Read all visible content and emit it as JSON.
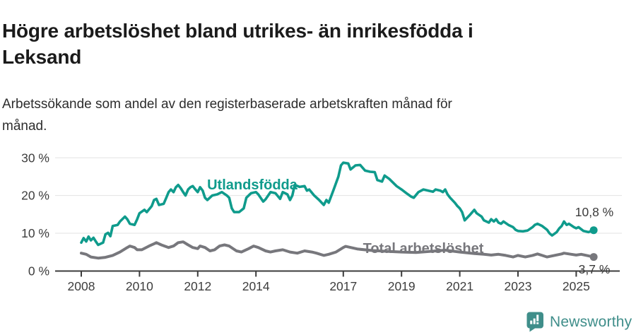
{
  "header": {
    "title": "Högre arbetslöshet bland utrikes- än inrikesfödda i\nLeksand",
    "subtitle": "Arbetssökande som andel av den registerbaserade arbetskraften månad för\nmånad."
  },
  "footer": {
    "brand": "Newsworthy"
  },
  "colors": {
    "accent_teal": "#0f9b8c",
    "series_gray": "#77777c",
    "axis_text": "#3d3d3d",
    "axis_line": "#3c3c3c",
    "gridline": "#e3e3e3",
    "logo_teal": "#3f8e8a"
  },
  "chart_data": {
    "type": "line",
    "title": "Högre arbetslöshet bland utrikes- än inrikesfödda i Leksand",
    "subtitle": "Arbetssökande som andel av den registerbaserade arbetskraften månad för månad.",
    "unit": "%",
    "grid": true,
    "x_axis": {
      "tick_labels": [
        "2008",
        "2010",
        "2012",
        "2014",
        "2017",
        "2019",
        "2021",
        "2023",
        "2025"
      ],
      "tick_years": [
        2008,
        2010,
        2012,
        2014,
        2017,
        2019,
        2021,
        2023,
        2025
      ]
    },
    "y_axis": {
      "ticks": [
        {
          "label": "30 %",
          "value": 30,
          "grid": true
        },
        {
          "label": "20 %",
          "value": 20,
          "grid": true
        },
        {
          "label": "10 %",
          "value": 10,
          "grid": true
        },
        {
          "label": "0 %",
          "value": 0,
          "grid": false
        }
      ],
      "range": [
        0,
        30
      ]
    },
    "series": [
      {
        "name": "Utlandsfödda",
        "color": "#0f9b8c",
        "end_label": "10,8 %",
        "end_value": 10.8,
        "points": [
          [
            2008.0,
            7.5
          ],
          [
            2008.08,
            8.7
          ],
          [
            2008.17,
            7.8
          ],
          [
            2008.25,
            9.1
          ],
          [
            2008.33,
            8.1
          ],
          [
            2008.42,
            8.8
          ],
          [
            2008.5,
            7.8
          ],
          [
            2008.58,
            6.9
          ],
          [
            2008.75,
            7.5
          ],
          [
            2008.83,
            9.7
          ],
          [
            2008.92,
            10.1
          ],
          [
            2009.0,
            9.2
          ],
          [
            2009.08,
            11.9
          ],
          [
            2009.25,
            12.2
          ],
          [
            2009.33,
            13.1
          ],
          [
            2009.5,
            14.4
          ],
          [
            2009.58,
            13.7
          ],
          [
            2009.67,
            12.5
          ],
          [
            2009.83,
            12.2
          ],
          [
            2009.92,
            13.7
          ],
          [
            2010.0,
            15.3
          ],
          [
            2010.17,
            16.2
          ],
          [
            2010.25,
            15.6
          ],
          [
            2010.42,
            17.2
          ],
          [
            2010.5,
            18.8
          ],
          [
            2010.58,
            19.1
          ],
          [
            2010.67,
            17.5
          ],
          [
            2010.83,
            17.8
          ],
          [
            2010.92,
            19.4
          ],
          [
            2011.0,
            20.9
          ],
          [
            2011.08,
            21.6
          ],
          [
            2011.17,
            20.9
          ],
          [
            2011.25,
            22.2
          ],
          [
            2011.33,
            22.8
          ],
          [
            2011.42,
            21.9
          ],
          [
            2011.5,
            20.9
          ],
          [
            2011.58,
            20.0
          ],
          [
            2011.67,
            21.6
          ],
          [
            2011.75,
            22.2
          ],
          [
            2011.83,
            22.5
          ],
          [
            2011.92,
            21.6
          ],
          [
            2012.0,
            20.9
          ],
          [
            2012.08,
            22.2
          ],
          [
            2012.17,
            21.3
          ],
          [
            2012.25,
            19.4
          ],
          [
            2012.33,
            18.8
          ],
          [
            2012.5,
            20.0
          ],
          [
            2012.67,
            20.3
          ],
          [
            2012.83,
            20.9
          ],
          [
            2013.0,
            20.0
          ],
          [
            2013.08,
            19.4
          ],
          [
            2013.17,
            16.6
          ],
          [
            2013.25,
            15.6
          ],
          [
            2013.42,
            15.6
          ],
          [
            2013.58,
            16.6
          ],
          [
            2013.67,
            19.4
          ],
          [
            2013.75,
            20.0
          ],
          [
            2013.83,
            20.6
          ],
          [
            2014.0,
            20.9
          ],
          [
            2014.08,
            20.3
          ],
          [
            2014.25,
            18.4
          ],
          [
            2014.33,
            19.0
          ],
          [
            2014.5,
            20.9
          ],
          [
            2014.67,
            20.6
          ],
          [
            2014.83,
            19.1
          ],
          [
            2014.92,
            20.9
          ],
          [
            2015.08,
            20.3
          ],
          [
            2015.17,
            18.8
          ],
          [
            2015.25,
            20.0
          ],
          [
            2015.33,
            22.8
          ],
          [
            2015.5,
            22.3
          ],
          [
            2015.67,
            22.5
          ],
          [
            2015.75,
            21.3
          ],
          [
            2015.83,
            21.6
          ],
          [
            2016.0,
            20.0
          ],
          [
            2016.17,
            18.8
          ],
          [
            2016.33,
            17.5
          ],
          [
            2016.42,
            18.8
          ],
          [
            2016.5,
            18.1
          ],
          [
            2016.67,
            21.6
          ],
          [
            2016.83,
            25.0
          ],
          [
            2016.92,
            28.0
          ],
          [
            2017.0,
            28.7
          ],
          [
            2017.17,
            28.5
          ],
          [
            2017.25,
            26.9
          ],
          [
            2017.42,
            28.0
          ],
          [
            2017.58,
            28.1
          ],
          [
            2017.75,
            26.6
          ],
          [
            2017.92,
            26.3
          ],
          [
            2018.08,
            26.2
          ],
          [
            2018.17,
            24.1
          ],
          [
            2018.33,
            23.7
          ],
          [
            2018.42,
            25.3
          ],
          [
            2018.58,
            24.4
          ],
          [
            2018.83,
            22.5
          ],
          [
            2019.0,
            21.6
          ],
          [
            2019.17,
            20.6
          ],
          [
            2019.33,
            19.7
          ],
          [
            2019.42,
            19.4
          ],
          [
            2019.58,
            20.9
          ],
          [
            2019.75,
            21.6
          ],
          [
            2019.92,
            21.3
          ],
          [
            2020.08,
            21.0
          ],
          [
            2020.17,
            21.6
          ],
          [
            2020.33,
            21.3
          ],
          [
            2020.42,
            20.9
          ],
          [
            2020.5,
            21.6
          ],
          [
            2020.58,
            20.3
          ],
          [
            2020.67,
            19.4
          ],
          [
            2020.83,
            18.1
          ],
          [
            2020.92,
            17.2
          ],
          [
            2021.0,
            16.6
          ],
          [
            2021.08,
            15.6
          ],
          [
            2021.17,
            13.4
          ],
          [
            2021.33,
            14.7
          ],
          [
            2021.5,
            16.2
          ],
          [
            2021.58,
            15.3
          ],
          [
            2021.75,
            14.4
          ],
          [
            2021.83,
            13.4
          ],
          [
            2022.0,
            12.8
          ],
          [
            2022.08,
            13.7
          ],
          [
            2022.17,
            13.1
          ],
          [
            2022.25,
            13.7
          ],
          [
            2022.33,
            12.8
          ],
          [
            2022.42,
            12.5
          ],
          [
            2022.5,
            13.1
          ],
          [
            2022.67,
            12.2
          ],
          [
            2022.83,
            11.6
          ],
          [
            2022.92,
            10.9
          ],
          [
            2023.0,
            10.6
          ],
          [
            2023.17,
            10.5
          ],
          [
            2023.33,
            10.7
          ],
          [
            2023.5,
            11.6
          ],
          [
            2023.58,
            12.2
          ],
          [
            2023.67,
            12.5
          ],
          [
            2023.83,
            11.9
          ],
          [
            2024.0,
            10.9
          ],
          [
            2024.08,
            10.0
          ],
          [
            2024.17,
            9.4
          ],
          [
            2024.33,
            10.3
          ],
          [
            2024.42,
            11.3
          ],
          [
            2024.5,
            11.9
          ],
          [
            2024.58,
            13.1
          ],
          [
            2024.67,
            12.2
          ],
          [
            2024.75,
            12.5
          ],
          [
            2024.92,
            11.6
          ],
          [
            2025.0,
            11.3
          ],
          [
            2025.08,
            11.6
          ],
          [
            2025.25,
            10.6
          ],
          [
            2025.42,
            10.3
          ],
          [
            2025.6,
            10.8
          ]
        ]
      },
      {
        "name": "Total arbetslöshet",
        "color": "#77777c",
        "end_label": "3,7 %",
        "end_value": 3.7,
        "points": [
          [
            2008.0,
            4.7
          ],
          [
            2008.17,
            4.4
          ],
          [
            2008.33,
            3.7
          ],
          [
            2008.58,
            3.4
          ],
          [
            2008.83,
            3.6
          ],
          [
            2009.08,
            4.1
          ],
          [
            2009.33,
            5.0
          ],
          [
            2009.58,
            6.2
          ],
          [
            2009.67,
            6.6
          ],
          [
            2009.83,
            6.2
          ],
          [
            2009.92,
            5.6
          ],
          [
            2010.08,
            5.6
          ],
          [
            2010.33,
            6.6
          ],
          [
            2010.5,
            7.2
          ],
          [
            2010.58,
            7.5
          ],
          [
            2010.75,
            6.9
          ],
          [
            2011.0,
            6.2
          ],
          [
            2011.17,
            6.6
          ],
          [
            2011.33,
            7.5
          ],
          [
            2011.5,
            7.7
          ],
          [
            2011.67,
            6.9
          ],
          [
            2011.83,
            6.2
          ],
          [
            2012.0,
            5.9
          ],
          [
            2012.08,
            6.6
          ],
          [
            2012.25,
            6.2
          ],
          [
            2012.42,
            5.3
          ],
          [
            2012.58,
            5.6
          ],
          [
            2012.75,
            6.6
          ],
          [
            2012.92,
            6.9
          ],
          [
            2013.08,
            6.6
          ],
          [
            2013.33,
            5.3
          ],
          [
            2013.5,
            5.0
          ],
          [
            2013.75,
            5.9
          ],
          [
            2013.92,
            6.6
          ],
          [
            2014.08,
            6.2
          ],
          [
            2014.33,
            5.3
          ],
          [
            2014.5,
            5.0
          ],
          [
            2014.67,
            5.3
          ],
          [
            2014.92,
            5.6
          ],
          [
            2015.17,
            5.0
          ],
          [
            2015.42,
            4.7
          ],
          [
            2015.67,
            5.3
          ],
          [
            2015.92,
            5.0
          ],
          [
            2016.08,
            4.7
          ],
          [
            2016.33,
            4.1
          ],
          [
            2016.5,
            4.4
          ],
          [
            2016.75,
            5.0
          ],
          [
            2017.0,
            6.2
          ],
          [
            2017.08,
            6.5
          ],
          [
            2017.5,
            5.8
          ],
          [
            2018.0,
            5.4
          ],
          [
            2018.5,
            5.2
          ],
          [
            2019.0,
            5.0
          ],
          [
            2019.5,
            4.9
          ],
          [
            2020.0,
            5.2
          ],
          [
            2020.5,
            5.5
          ],
          [
            2021.0,
            5.0
          ],
          [
            2021.5,
            4.6
          ],
          [
            2021.83,
            4.4
          ],
          [
            2022.08,
            4.2
          ],
          [
            2022.33,
            4.4
          ],
          [
            2022.58,
            4.1
          ],
          [
            2022.83,
            3.7
          ],
          [
            2023.0,
            4.1
          ],
          [
            2023.25,
            3.7
          ],
          [
            2023.5,
            4.1
          ],
          [
            2023.67,
            4.5
          ],
          [
            2023.83,
            4.1
          ],
          [
            2024.0,
            3.7
          ],
          [
            2024.25,
            4.1
          ],
          [
            2024.5,
            4.5
          ],
          [
            2024.58,
            4.7
          ],
          [
            2024.83,
            4.4
          ],
          [
            2025.0,
            4.2
          ],
          [
            2025.17,
            4.4
          ],
          [
            2025.6,
            3.7
          ]
        ]
      }
    ]
  }
}
